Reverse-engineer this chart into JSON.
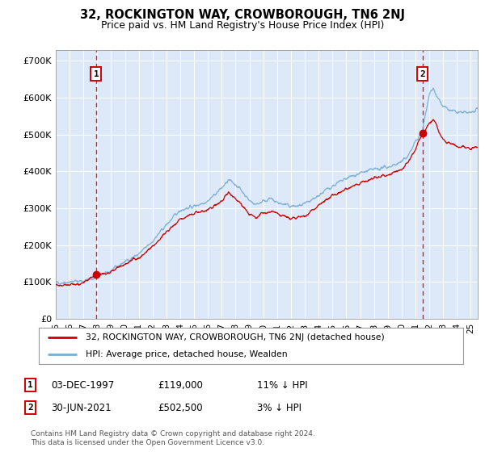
{
  "title": "32, ROCKINGTON WAY, CROWBOROUGH, TN6 2NJ",
  "subtitle": "Price paid vs. HM Land Registry's House Price Index (HPI)",
  "background_color": "#dde8f8",
  "plot_bg_color": "#dde8f8",
  "hpi_color": "#7aaed6",
  "price_color": "#cc0000",
  "ylim": [
    0,
    730000
  ],
  "yticks": [
    0,
    100000,
    200000,
    300000,
    400000,
    500000,
    600000,
    700000
  ],
  "ytick_labels": [
    "£0",
    "£100K",
    "£200K",
    "£300K",
    "£400K",
    "£500K",
    "£600K",
    "£700K"
  ],
  "xlim_start": 1995.0,
  "xlim_end": 2025.5,
  "xtick_years": [
    1995,
    1996,
    1997,
    1998,
    1999,
    2000,
    2001,
    2002,
    2003,
    2004,
    2005,
    2006,
    2007,
    2008,
    2009,
    2010,
    2011,
    2012,
    2013,
    2014,
    2015,
    2016,
    2017,
    2018,
    2019,
    2020,
    2021,
    2022,
    2023,
    2024,
    2025
  ],
  "xtick_labels": [
    "95",
    "96",
    "97",
    "98",
    "99",
    "00",
    "01",
    "02",
    "03",
    "04",
    "05",
    "06",
    "07",
    "08",
    "09",
    "10",
    "11",
    "12",
    "13",
    "14",
    "15",
    "16",
    "17",
    "18",
    "19",
    "20",
    "21",
    "22",
    "23",
    "24",
    "25"
  ],
  "sale1_x": 1997.92,
  "sale1_y": 119000,
  "sale1_label": "1",
  "sale1_date": "03-DEC-1997",
  "sale1_price": "£119,000",
  "sale1_hpi": "11% ↓ HPI",
  "sale2_x": 2021.5,
  "sale2_y": 502500,
  "sale2_label": "2",
  "sale2_date": "30-JUN-2021",
  "sale2_price": "£502,500",
  "sale2_hpi": "3% ↓ HPI",
  "legend_line1": "32, ROCKINGTON WAY, CROWBOROUGH, TN6 2NJ (detached house)",
  "legend_line2": "HPI: Average price, detached house, Wealden",
  "footer": "Contains HM Land Registry data © Crown copyright and database right 2024.\nThis data is licensed under the Open Government Licence v3.0."
}
